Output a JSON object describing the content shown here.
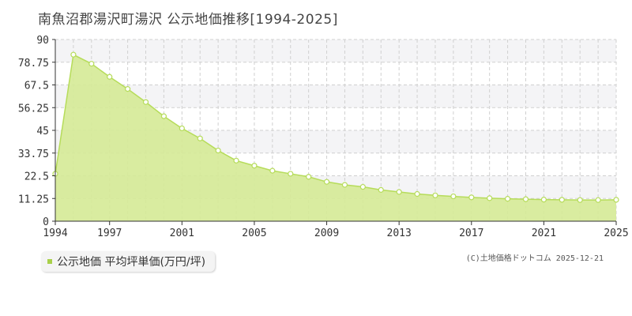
{
  "title": "南魚沼郡湯沢町湯沢 公示地価推移[1994-2025]",
  "legend": {
    "label": "公示地価 平均坪単価(万円/坪)"
  },
  "credit": "(C)土地価格ドットコム 2025-12-21",
  "colors": {
    "fill": "#d5ea96",
    "line": "#b6dc5a",
    "point_fill": "#ffffff",
    "grid": "#d0d0d0",
    "band": "#f4f4f6",
    "axis": "#333333"
  },
  "chart_data": {
    "type": "area",
    "xlim": [
      1994,
      2025
    ],
    "ylim": [
      0,
      90
    ],
    "y_ticks": [
      "0",
      "11.25",
      "22.5",
      "33.75",
      "45",
      "56.25",
      "67.5",
      "78.75",
      "90"
    ],
    "x_ticks": [
      "1994",
      "1997",
      "2001",
      "2005",
      "2009",
      "2013",
      "2017",
      "2021",
      "2025"
    ],
    "grid": true,
    "series": [
      {
        "x": [
          1994,
          1995,
          1996,
          1997,
          1998,
          1999,
          2000,
          2001,
          2002,
          2003,
          2004,
          2005,
          2006,
          2007,
          2008,
          2009,
          2010,
          2011,
          2012,
          2013,
          2014,
          2015,
          2016,
          2017,
          2018,
          2019,
          2020,
          2021,
          2022,
          2023,
          2024,
          2025
        ],
        "values": [
          23.5,
          82.5,
          78.0,
          71.5,
          65.5,
          59.0,
          52.0,
          46.0,
          41.0,
          35.0,
          30.0,
          27.5,
          25.0,
          23.5,
          22.0,
          19.5,
          18.0,
          17.0,
          15.5,
          14.5,
          13.5,
          12.8,
          12.3,
          11.8,
          11.4,
          11.1,
          10.9,
          10.7,
          10.6,
          10.5,
          10.5,
          10.6
        ]
      }
    ]
  }
}
